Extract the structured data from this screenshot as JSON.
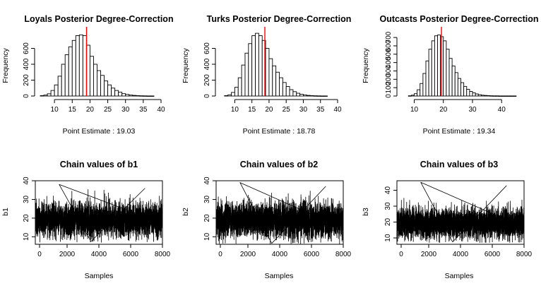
{
  "figure": {
    "panels": [
      {
        "kind": "hist",
        "title": "Loyals Posterior Degree-Correction",
        "ylabel": "Frequency",
        "xlabel": "Point Estimate : 19.03"
      },
      {
        "kind": "hist",
        "title": "Turks Posterior Degree-Correction",
        "ylabel": "Frequency",
        "xlabel": "Point Estimate : 18.78"
      },
      {
        "kind": "hist",
        "title": "Outcasts Posterior Degree-Correction",
        "ylabel": "Frequency",
        "xlabel": "Point Estimate : 19.34"
      },
      {
        "kind": "trace",
        "title": "Chain values of b1",
        "ylabel": "b1",
        "xlabel": "Samples"
      },
      {
        "kind": "trace",
        "title": "Chain values of b2",
        "ylabel": "b2",
        "xlabel": "Samples"
      },
      {
        "kind": "trace",
        "title": "Chain values of b3",
        "ylabel": "b3",
        "xlabel": "Samples"
      }
    ]
  },
  "chart_data": [
    {
      "type": "bar",
      "title": "Loyals Posterior Degree-Correction",
      "xlabel": "Point Estimate : 19.03",
      "ylabel": "Frequency",
      "bin_width": 1,
      "bin_start": 6,
      "values": [
        5,
        12,
        28,
        70,
        140,
        250,
        400,
        520,
        620,
        700,
        760,
        770,
        760,
        640,
        500,
        400,
        320,
        260,
        190,
        140,
        100,
        70,
        48,
        30,
        20,
        12,
        8,
        5,
        3,
        2,
        1,
        1
      ],
      "xlim": [
        6,
        40
      ],
      "ylim": [
        0,
        800
      ],
      "xticks": [
        10,
        15,
        20,
        25,
        30,
        35,
        40
      ],
      "yticks": [
        0,
        200,
        400,
        600
      ],
      "vline": {
        "x": 19.03,
        "color": "#ff0000"
      },
      "bar_fill": "#ffffff",
      "bar_stroke": "#000000"
    },
    {
      "type": "bar",
      "title": "Turks Posterior Degree-Correction",
      "xlabel": "Point Estimate : 18.78",
      "ylabel": "Frequency",
      "bin_width": 1,
      "bin_start": 7,
      "values": [
        5,
        15,
        45,
        110,
        230,
        390,
        540,
        660,
        760,
        790,
        760,
        700,
        600,
        470,
        380,
        300,
        230,
        170,
        120,
        80,
        55,
        35,
        22,
        14,
        8,
        5,
        3,
        2,
        1,
        1
      ],
      "xlim": [
        6,
        40
      ],
      "ylim": [
        0,
        800
      ],
      "xticks": [
        10,
        15,
        20,
        25,
        30,
        35,
        40
      ],
      "yticks": [
        0,
        200,
        400,
        600
      ],
      "vline": {
        "x": 18.78,
        "color": "#ff0000"
      },
      "bar_fill": "#ffffff",
      "bar_stroke": "#000000"
    },
    {
      "type": "bar",
      "title": "Outcasts Posterior Degree-Correction",
      "xlabel": "Point Estimate : 19.34",
      "ylabel": "Frequency",
      "bin_width": 1,
      "bin_start": 8,
      "values": [
        3,
        10,
        28,
        75,
        150,
        270,
        420,
        560,
        660,
        720,
        730,
        710,
        660,
        560,
        450,
        360,
        280,
        210,
        160,
        115,
        80,
        55,
        38,
        25,
        16,
        10,
        7,
        5,
        3,
        2,
        2,
        1,
        1,
        1,
        1,
        1,
        1
      ],
      "xlim": [
        6,
        46
      ],
      "ylim": [
        0,
        760
      ],
      "xticks": [
        10,
        20,
        30,
        40
      ],
      "yticks": [
        0,
        100,
        200,
        300,
        400,
        500,
        600,
        700
      ],
      "vline": {
        "x": 19.34,
        "color": "#ff0000"
      },
      "bar_fill": "#ffffff",
      "bar_stroke": "#000000"
    },
    {
      "type": "line",
      "title": "Chain values of b1",
      "xlabel": "Samples",
      "ylabel": "b1",
      "n_samples": 8000,
      "mean": 19.0,
      "sd": 4.4,
      "min": 7,
      "max": 38,
      "xlim": [
        0,
        8000
      ],
      "ylim": [
        6,
        40
      ],
      "xticks": [
        0,
        2000,
        4000,
        6000,
        8000
      ],
      "yticks": [
        10,
        20,
        30,
        40
      ],
      "line_color": "#000000"
    },
    {
      "type": "line",
      "title": "Chain values of b2",
      "xlabel": "Samples",
      "ylabel": "b2",
      "n_samples": 8000,
      "mean": 18.8,
      "sd": 4.5,
      "min": 6,
      "max": 39,
      "xlim": [
        0,
        8000
      ],
      "ylim": [
        6,
        40
      ],
      "xticks": [
        0,
        2000,
        4000,
        6000,
        8000
      ],
      "yticks": [
        10,
        20,
        30,
        40
      ],
      "line_color": "#000000"
    },
    {
      "type": "line",
      "title": "Chain values of b3",
      "xlabel": "Samples",
      "ylabel": "b3",
      "n_samples": 8000,
      "mean": 19.3,
      "sd": 4.6,
      "min": 7,
      "max": 45,
      "xlim": [
        0,
        8000
      ],
      "ylim": [
        6,
        46
      ],
      "xticks": [
        0,
        2000,
        4000,
        6000,
        8000
      ],
      "yticks": [
        10,
        20,
        30,
        40
      ],
      "line_color": "#000000"
    }
  ]
}
